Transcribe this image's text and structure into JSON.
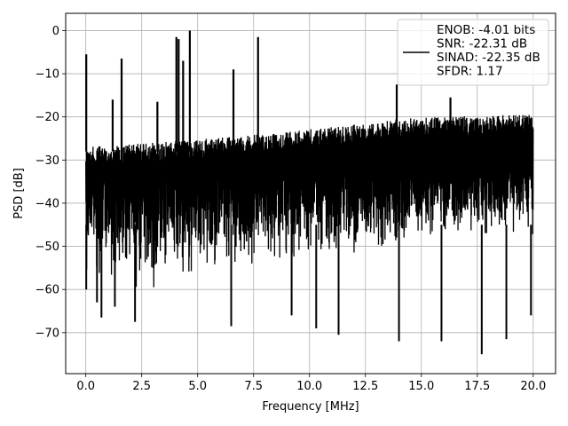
{
  "chart_data": {
    "type": "line",
    "xlabel": "Frequency [MHz]",
    "ylabel": "PSD [dB]",
    "xlim": [
      -0.9,
      21.0
    ],
    "ylim": [
      -79.5,
      4.0
    ],
    "xticks": [
      0.0,
      2.5,
      5.0,
      7.5,
      10.0,
      12.5,
      15.0,
      17.5,
      20.0
    ],
    "xtick_labels": [
      "0.0",
      "2.5",
      "5.0",
      "7.5",
      "10.0",
      "12.5",
      "15.0",
      "17.5",
      "20.0"
    ],
    "yticks": [
      0,
      -10,
      -20,
      -30,
      -40,
      -50,
      -60,
      -70
    ],
    "ytick_labels": [
      "0",
      "−10",
      "−20",
      "−30",
      "−40",
      "−50",
      "−60",
      "−70"
    ],
    "grid": true,
    "legend_location": "upper right",
    "series": [
      {
        "color": "#000000",
        "noise_floor_db": [
          -27,
          -19
        ],
        "noise_min_db": [
          -63,
          -48
        ],
        "spikes": [
          {
            "x": 0.02,
            "y": -5.5
          },
          {
            "x": 1.2,
            "y": -16.0
          },
          {
            "x": 1.6,
            "y": -6.5
          },
          {
            "x": 3.2,
            "y": -16.5
          },
          {
            "x": 4.05,
            "y": -1.5
          },
          {
            "x": 4.15,
            "y": -2.0
          },
          {
            "x": 4.35,
            "y": -7.0
          },
          {
            "x": 4.65,
            "y": 0.0
          },
          {
            "x": 6.6,
            "y": -9.0
          },
          {
            "x": 7.7,
            "y": -1.5
          },
          {
            "x": 13.9,
            "y": -12.5
          },
          {
            "x": 16.3,
            "y": -15.5
          }
        ],
        "deep_dips": [
          {
            "x": 0.02,
            "y": -60.0
          },
          {
            "x": 0.5,
            "y": -63.0
          },
          {
            "x": 0.7,
            "y": -66.5
          },
          {
            "x": 1.3,
            "y": -64.0
          },
          {
            "x": 2.2,
            "y": -67.5
          },
          {
            "x": 6.5,
            "y": -68.5
          },
          {
            "x": 9.2,
            "y": -66.0
          },
          {
            "x": 10.3,
            "y": -69.0
          },
          {
            "x": 11.3,
            "y": -70.5
          },
          {
            "x": 14.0,
            "y": -72.0
          },
          {
            "x": 15.9,
            "y": -72.0
          },
          {
            "x": 17.7,
            "y": -75.0
          },
          {
            "x": 18.8,
            "y": -71.5
          },
          {
            "x": 19.9,
            "y": -66.0
          }
        ]
      }
    ],
    "legend": [
      "ENOB: -4.01 bits",
      "SNR: -22.31 dB",
      "SINAD: -22.35 dB",
      "SFDR: 1.17"
    ]
  }
}
